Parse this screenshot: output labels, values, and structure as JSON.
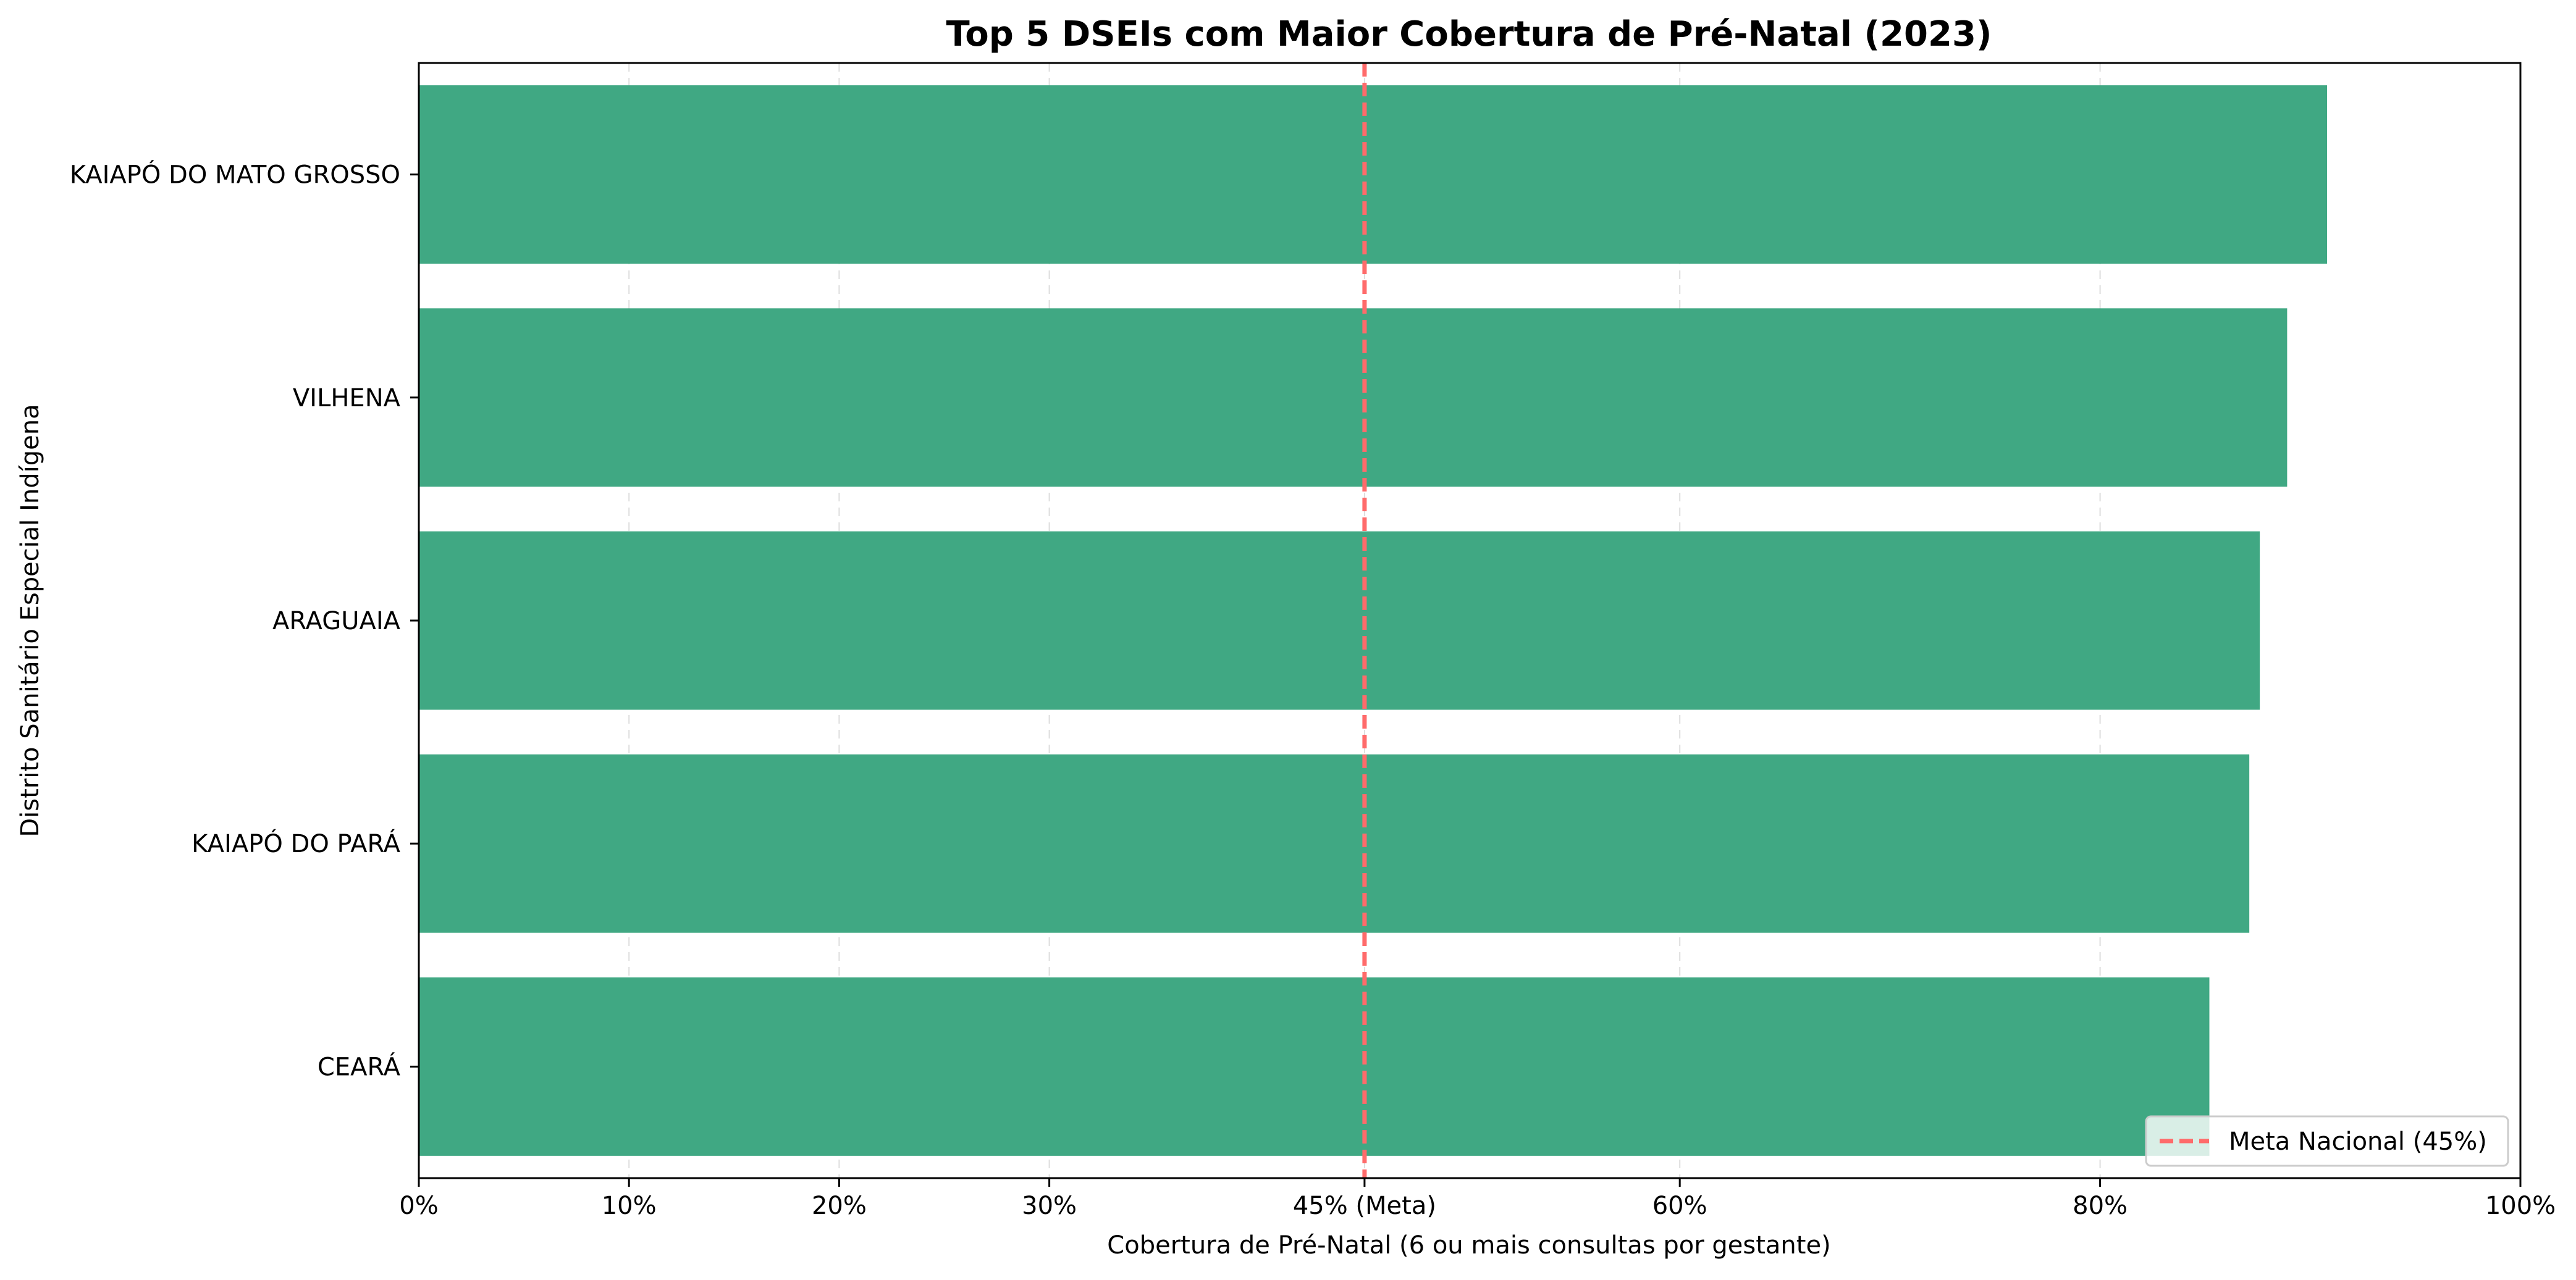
{
  "chart_data": {
    "type": "bar",
    "orientation": "horizontal",
    "title": "Top 5 DSEIs com Maior Cobertura de Pré-Natal (2023)",
    "xlabel": "Cobertura de Pré-Natal (6 ou mais consultas por gestante)",
    "ylabel": "Distrito Sanitário Especial Indígena",
    "categories": [
      "KAIAPÓ DO MATO GROSSO",
      "VILHENA",
      "ARAGUAIA",
      "KAIAPÓ DO PARÁ",
      "CEARÁ"
    ],
    "values": [
      90.8,
      88.9,
      87.6,
      87.1,
      85.2
    ],
    "xlim": [
      0,
      100
    ],
    "xticks": [
      0,
      10,
      20,
      30,
      45,
      60,
      80,
      100
    ],
    "xtick_labels": [
      "0%",
      "10%",
      "20%",
      "30%",
      "45% (Meta)",
      "60%",
      "80%",
      "100%"
    ],
    "grid": "x dashed",
    "reference_line": {
      "value": 45,
      "label": "Meta Nacional (45%)",
      "color": "#ff6b6b",
      "style": "dashed"
    },
    "legend_position": "bottom-right",
    "bar_color": "#40a883"
  }
}
